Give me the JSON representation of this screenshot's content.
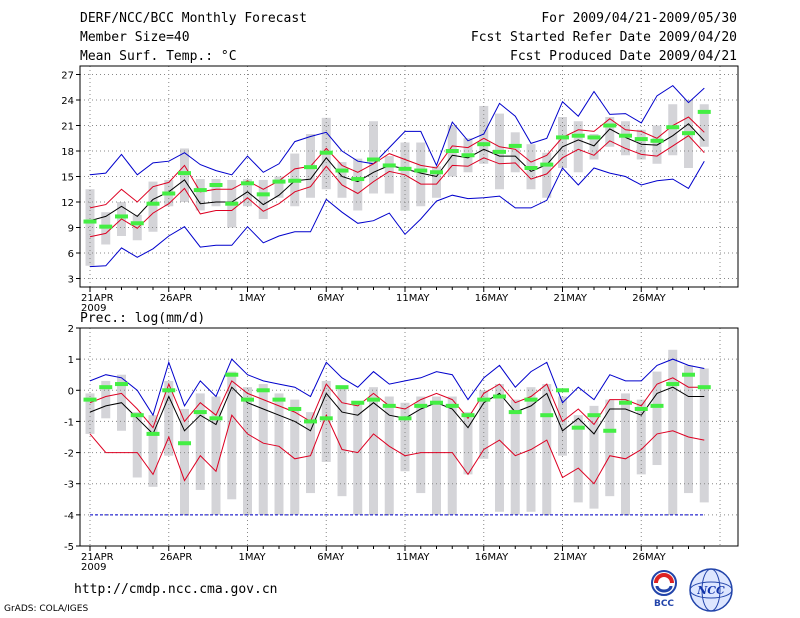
{
  "header": {
    "title": "DERF/NCC/BCC Monthly Forecast",
    "member_size": "Member Size=40",
    "variable": "Mean Surf. Temp.: °C",
    "period": "For 2009/04/21-2009/05/30",
    "fcst_started": "Fcst Started Refer Date 2009/04/20",
    "fcst_produced": "Fcst Produced Date 2009/04/21"
  },
  "footer": {
    "url": "http://cmdp.ncc.cma.gov.cn",
    "credit": "GrADS: COLA/IGES",
    "logo_bcc_text": "BCC",
    "logo_ncc_text": "NCC"
  },
  "colors": {
    "box": "#d4d4d8",
    "median": "#44ee44",
    "mean": "#000000",
    "spread": "#dd0022",
    "extreme": "#0000cc",
    "grid": "#888888"
  },
  "chart_data": [
    {
      "type": "line",
      "title": "Mean Surf. Temp.: °C",
      "x_tick_labels": [
        "21APR",
        "26APR",
        "1MAY",
        "6MAY",
        "11MAY",
        "16MAY",
        "21MAY",
        "26MAY"
      ],
      "x_tick_days": [
        0,
        5,
        10,
        15,
        20,
        25,
        30,
        35
      ],
      "year_label": "2009",
      "ylim": [
        2,
        28
      ],
      "yticks": [
        3,
        6,
        9,
        12,
        15,
        18,
        21,
        24,
        27
      ],
      "ytick_labels": [
        "3",
        "6",
        "9",
        "12",
        "15",
        "18",
        "21",
        "24",
        "27"
      ],
      "days": [
        0,
        1,
        2,
        3,
        4,
        5,
        6,
        7,
        8,
        9,
        10,
        11,
        12,
        13,
        14,
        15,
        16,
        17,
        18,
        19,
        20,
        21,
        22,
        23,
        24,
        25,
        26,
        27,
        28,
        29,
        30,
        31,
        32,
        33,
        34,
        35,
        36,
        37,
        38,
        39
      ],
      "series": [
        {
          "name": "max",
          "values": [
            15.2,
            15.4,
            17.6,
            15.2,
            16.6,
            16.8,
            17.8,
            16.4,
            15.7,
            15.2,
            17.4,
            15.5,
            16.5,
            19.1,
            19.7,
            20.2,
            18.0,
            16.8,
            16.5,
            18.4,
            20.3,
            20.3,
            16.3,
            21.4,
            19.2,
            20.0,
            23.6,
            22.1,
            18.9,
            19.5,
            23.8,
            22.1,
            25.0,
            22.3,
            22.4,
            21.3,
            24.5,
            25.7,
            23.7,
            25.4
          ]
        },
        {
          "name": "mean_plus",
          "values": [
            11.3,
            11.7,
            13.5,
            12.0,
            13.8,
            14.3,
            16.3,
            13.2,
            13.5,
            13.5,
            14.5,
            13.5,
            14.5,
            15.9,
            16.2,
            18.3,
            16.3,
            15.5,
            16.5,
            17.7,
            17.0,
            16.3,
            16.0,
            18.6,
            18.4,
            19.5,
            18.5,
            18.2,
            16.7,
            17.5,
            19.6,
            20.5,
            20.3,
            21.8,
            20.5,
            20.3,
            19.5,
            21.0,
            22.0,
            20.2
          ]
        },
        {
          "name": "mean",
          "values": [
            9.8,
            10.3,
            11.5,
            10.3,
            12.3,
            13.2,
            14.6,
            11.8,
            12.0,
            12.0,
            13.2,
            11.7,
            12.8,
            14.5,
            14.7,
            17.2,
            15.0,
            14.4,
            15.5,
            16.3,
            15.9,
            15.4,
            15.0,
            17.5,
            17.2,
            18.2,
            17.4,
            17.4,
            15.6,
            16.4,
            18.5,
            19.3,
            18.6,
            20.6,
            19.6,
            18.8,
            18.7,
            19.8,
            21.2,
            19.2
          ]
        },
        {
          "name": "mean_minus",
          "values": [
            7.9,
            8.3,
            10.0,
            8.9,
            10.7,
            11.8,
            13.6,
            10.6,
            11.0,
            11.0,
            12.5,
            10.9,
            11.8,
            13.2,
            13.8,
            16.2,
            14.0,
            13.0,
            14.4,
            15.6,
            15.2,
            14.1,
            14.1,
            16.3,
            16.2,
            17.2,
            16.5,
            16.6,
            14.7,
            15.3,
            17.2,
            18.2,
            17.5,
            19.2,
            18.3,
            17.6,
            17.4,
            18.6,
            19.8,
            17.8
          ]
        },
        {
          "name": "min",
          "values": [
            4.4,
            4.5,
            6.6,
            5.5,
            6.5,
            8.0,
            9.1,
            6.7,
            6.9,
            6.9,
            9.1,
            7.2,
            8.0,
            8.5,
            8.5,
            12.3,
            10.8,
            9.5,
            9.8,
            10.7,
            8.2,
            10.0,
            12.1,
            12.8,
            12.4,
            12.5,
            12.7,
            11.3,
            11.3,
            12.2,
            16.0,
            14.0,
            16.0,
            15.4,
            15.0,
            14.0,
            14.5,
            14.7,
            13.6,
            16.8
          ]
        },
        {
          "name": "median",
          "values": [
            9.7,
            9.1,
            10.3,
            9.5,
            11.8,
            13.0,
            15.4,
            13.4,
            14.0,
            11.8,
            14.2,
            12.9,
            14.4,
            14.5,
            16.1,
            17.8,
            15.7,
            14.7,
            17.0,
            16.3,
            15.9,
            15.7,
            15.5,
            18.0,
            17.5,
            18.8,
            17.9,
            18.6,
            16.0,
            16.4,
            19.6,
            19.8,
            19.6,
            21.0,
            19.8,
            19.4,
            19.2,
            20.8,
            20.1,
            22.6
          ]
        },
        {
          "name": "box_top",
          "values": [
            13.5,
            10.8,
            12.0,
            10.5,
            14.4,
            14.6,
            18.3,
            14.7,
            14.7,
            14.6,
            14.7,
            14.6,
            15.0,
            17.7,
            20.0,
            21.9,
            16.7,
            17.1,
            21.5,
            17.4,
            19.0,
            19.0,
            16.2,
            21.0,
            19.5,
            23.3,
            22.4,
            20.2,
            18.8,
            17.8,
            22.0,
            21.5,
            20.0,
            22.0,
            21.5,
            20.5,
            21.0,
            23.5,
            24.0,
            23.5
          ]
        },
        {
          "name": "box_bottom",
          "values": [
            4.5,
            7.0,
            8.0,
            7.5,
            8.5,
            11.5,
            12.0,
            11.0,
            11.5,
            9.0,
            11.5,
            10.0,
            12.5,
            11.5,
            12.5,
            13.5,
            12.5,
            11.0,
            13.0,
            13.0,
            11.0,
            11.5,
            12.5,
            15.0,
            15.5,
            16.5,
            13.5,
            15.5,
            13.5,
            12.5,
            16.0,
            15.5,
            17.0,
            18.5,
            17.5,
            17.0,
            16.5,
            17.5,
            16.0,
            18.5
          ]
        }
      ]
    },
    {
      "type": "line",
      "title": "Prec.: log(mm/d)",
      "x_tick_labels": [
        "21APR",
        "26APR",
        "1MAY",
        "6MAY",
        "11MAY",
        "16MAY",
        "21MAY",
        "26MAY"
      ],
      "x_tick_days": [
        0,
        5,
        10,
        15,
        20,
        25,
        30,
        35
      ],
      "year_label": "2009",
      "ylim": [
        -5,
        2
      ],
      "yticks": [
        -5,
        -4,
        -3,
        -2,
        -1,
        0,
        1,
        2
      ],
      "ytick_labels": [
        "-5",
        "-4",
        "-3",
        "-2",
        "-1",
        "0",
        "1",
        "2"
      ],
      "days": [
        0,
        1,
        2,
        3,
        4,
        5,
        6,
        7,
        8,
        9,
        10,
        11,
        12,
        13,
        14,
        15,
        16,
        17,
        18,
        19,
        20,
        21,
        22,
        23,
        24,
        25,
        26,
        27,
        28,
        29,
        30,
        31,
        32,
        33,
        34,
        35,
        36,
        37,
        38,
        39
      ],
      "series": [
        {
          "name": "max",
          "values": [
            0.3,
            0.5,
            0.4,
            0.0,
            -0.8,
            0.9,
            -0.5,
            0.3,
            -0.2,
            1.0,
            0.5,
            0.3,
            0.2,
            0.1,
            -0.2,
            0.9,
            0.4,
            0.1,
            0.6,
            0.2,
            0.3,
            0.4,
            0.6,
            0.5,
            -0.3,
            0.4,
            0.8,
            0.1,
            0.6,
            0.9,
            -0.4,
            0.1,
            -0.3,
            0.5,
            0.3,
            0.3,
            0.8,
            1.0,
            0.8,
            0.7
          ]
        },
        {
          "name": "mean_plus",
          "values": [
            -0.4,
            -0.2,
            -0.1,
            -0.6,
            -1.2,
            0.2,
            -1.0,
            -0.4,
            -0.8,
            0.3,
            -0.1,
            -0.3,
            -0.5,
            -0.7,
            -1.0,
            0.2,
            -0.4,
            -0.5,
            -0.1,
            -0.5,
            -0.6,
            -0.3,
            -0.1,
            -0.3,
            -0.9,
            -0.1,
            0.2,
            -0.4,
            -0.2,
            0.2,
            -1.0,
            -0.6,
            -1.1,
            -0.3,
            -0.3,
            -0.5,
            0.2,
            0.4,
            0.1,
            0.1
          ]
        },
        {
          "name": "mean",
          "values": [
            -0.7,
            -0.5,
            -0.4,
            -0.9,
            -1.4,
            -0.2,
            -1.3,
            -0.8,
            -1.1,
            0.1,
            -0.4,
            -0.6,
            -0.8,
            -1.0,
            -1.3,
            -0.1,
            -0.7,
            -0.8,
            -0.4,
            -0.8,
            -0.9,
            -0.6,
            -0.4,
            -0.6,
            -1.2,
            -0.4,
            -0.1,
            -0.7,
            -0.5,
            -0.1,
            -1.3,
            -0.9,
            -1.4,
            -0.6,
            -0.6,
            -0.8,
            -0.1,
            0.1,
            -0.2,
            -0.2
          ]
        },
        {
          "name": "mean_minus",
          "values": [
            -1.4,
            -2.0,
            -2.0,
            -2.0,
            -2.7,
            -1.5,
            -2.9,
            -2.1,
            -2.6,
            -0.8,
            -1.4,
            -1.7,
            -1.8,
            -2.2,
            -2.1,
            -0.8,
            -1.9,
            -2.0,
            -1.4,
            -1.8,
            -2.1,
            -2.0,
            -2.0,
            -2.0,
            -2.7,
            -1.9,
            -1.6,
            -2.1,
            -1.9,
            -1.6,
            -2.8,
            -2.5,
            -3.0,
            -2.1,
            -2.2,
            -1.9,
            -1.4,
            -1.3,
            -1.5,
            -1.6
          ]
        },
        {
          "name": "min",
          "values": [
            -4,
            -4,
            -4,
            -4,
            -4,
            -4,
            -4,
            -4,
            -4,
            -4,
            -4,
            -4,
            -4,
            -4,
            -4,
            -4,
            -4,
            -4,
            -4,
            -4,
            -4,
            -4,
            -4,
            -4,
            -4,
            -4,
            -4,
            -4,
            -4,
            -4,
            -4,
            -4,
            -4,
            -4,
            -4,
            -4,
            -4,
            -4,
            -4,
            -4
          ]
        },
        {
          "name": "median",
          "values": [
            -0.3,
            0.1,
            0.2,
            -0.8,
            -1.4,
            0.0,
            -1.7,
            -0.7,
            -0.9,
            0.5,
            -0.3,
            0.0,
            -0.3,
            -0.6,
            -1.0,
            -0.9,
            0.1,
            -0.4,
            -0.3,
            -0.5,
            -0.9,
            -0.5,
            -0.4,
            -0.5,
            -0.8,
            -0.3,
            -0.2,
            -0.7,
            -0.3,
            -0.8,
            0.0,
            -1.2,
            -0.8,
            -1.3,
            -0.4,
            -0.6,
            -0.5,
            0.2,
            0.5,
            0.1
          ]
        },
        {
          "name": "box_top",
          "values": [
            -0.1,
            0.3,
            0.5,
            -0.7,
            -0.8,
            0.3,
            -0.6,
            -0.1,
            -0.2,
            0.6,
            0.1,
            0.2,
            -0.1,
            -0.3,
            -0.7,
            0.3,
            0.1,
            -0.4,
            0.1,
            -0.2,
            -0.4,
            -0.2,
            -0.2,
            -0.2,
            -0.7,
            0.0,
            0.2,
            -0.3,
            0.1,
            0.2,
            -0.2,
            -0.8,
            -0.5,
            -0.3,
            -0.1,
            -0.3,
            0.6,
            1.3,
            0.8,
            0.7
          ]
        },
        {
          "name": "box_bottom",
          "values": [
            -1.4,
            -0.9,
            -1.3,
            -2.8,
            -3.1,
            -2.1,
            -4.0,
            -3.2,
            -4.0,
            -3.5,
            -4.0,
            -4.0,
            -4.0,
            -4.0,
            -3.3,
            -2.3,
            -3.4,
            -4.0,
            -4.0,
            -4.0,
            -2.6,
            -3.3,
            -4.0,
            -4.0,
            -2.7,
            -2.2,
            -3.9,
            -4.0,
            -3.9,
            -4.0,
            -2.1,
            -3.6,
            -3.8,
            -3.4,
            -4.0,
            -2.7,
            -2.4,
            -4.0,
            -3.3,
            -3.6
          ]
        }
      ]
    }
  ]
}
